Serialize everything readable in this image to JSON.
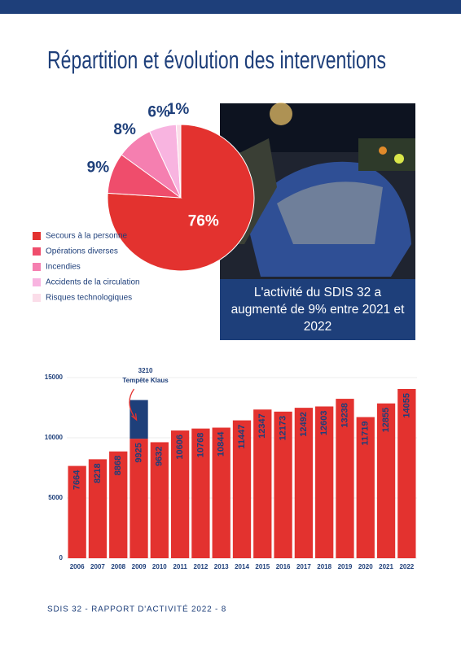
{
  "title": "Répartition et évolution des interventions",
  "chart_data": [
    {
      "type": "pie",
      "categories": [
        "Secours à la personne",
        "Opérations diverses",
        "Incendies",
        "Accidents de la circulation",
        "Risques technologiques"
      ],
      "values": [
        76,
        9,
        8,
        6,
        1
      ],
      "value_labels": [
        "76%",
        "9%",
        "8%",
        "6%",
        "1%"
      ],
      "colors": [
        "#e3322f",
        "#ef4d6c",
        "#f57fb0",
        "#f8b4e0",
        "#fbdde9"
      ]
    },
    {
      "type": "bar",
      "categories": [
        "2006",
        "2007",
        "2008",
        "2009",
        "2010",
        "2011",
        "2012",
        "2013",
        "2014",
        "2015",
        "2016",
        "2017",
        "2018",
        "2019",
        "2020",
        "2021",
        "2022"
      ],
      "series": [
        {
          "color": "#e3322f",
          "values": [
            7664,
            8218,
            8868,
            9925,
            9632,
            10606,
            10768,
            10844,
            11447,
            12347,
            12173,
            12492,
            12603,
            13238,
            11719,
            12855,
            14055
          ]
        },
        {
          "color": "#1e3f7a",
          "values": [
            null,
            null,
            null,
            3210,
            null,
            null,
            null,
            null,
            null,
            null,
            null,
            null,
            null,
            null,
            null,
            null,
            null
          ]
        }
      ],
      "annotation": "Tempête Klaus",
      "ylim": [
        0,
        15000
      ],
      "yticks": [
        0,
        5000,
        10000,
        15000
      ],
      "grid": true
    }
  ],
  "photo_caption": "L'activité du SDIS 32 a augmenté de 9% entre 2021 et 2022",
  "footer": "SDIS 32 - RAPPORT D'ACTIVITÉ 2022 - 8"
}
